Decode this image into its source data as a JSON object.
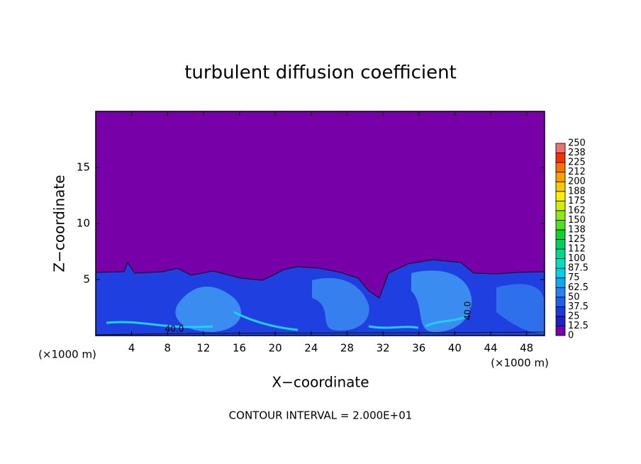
{
  "chart_data": {
    "type": "contour",
    "title": "turbulent diffusion coefficient",
    "x_label": "X−coordinate",
    "y_label": "Z−coordinate",
    "axis_unit": "(×1000 m)",
    "footer": "CONTOUR INTERVAL = 2.000E+01",
    "annotations": [
      "40.0",
      "40.0"
    ],
    "xlim": [
      0,
      50
    ],
    "xticks": [
      4,
      8,
      12,
      16,
      20,
      24,
      28,
      32,
      36,
      40,
      44,
      48
    ],
    "ylim": [
      0,
      20
    ],
    "yticks": [
      5,
      10,
      15
    ],
    "levels": [
      0,
      12.5,
      25,
      37.5,
      50,
      62.5,
      75,
      87.5,
      100,
      112,
      125,
      138,
      150,
      162,
      175,
      188,
      200,
      212,
      225,
      238,
      250
    ],
    "colors": [
      "#7800a8",
      "#2020c8",
      "#1a3ae0",
      "#2060f0",
      "#2a80f0",
      "#10a8f0",
      "#00d0e8",
      "#00e0c0",
      "#00d890",
      "#00d060",
      "#10d030",
      "#50e020",
      "#90e810",
      "#d0f000",
      "#f8f000",
      "#f8c800",
      "#f8a000",
      "#f87000",
      "#f83000",
      "#f07070"
    ]
  }
}
